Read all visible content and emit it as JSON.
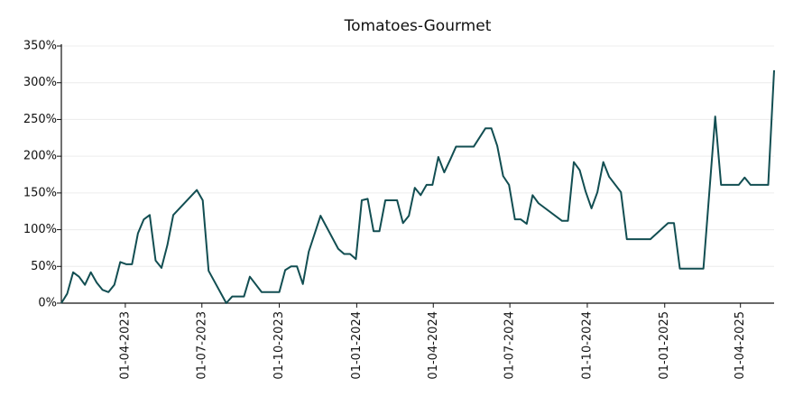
{
  "chart_data": {
    "type": "line",
    "title": "Tomatoes-Gourmet",
    "x": [
      "2023-01-15",
      "2023-01-22",
      "2023-01-29",
      "2023-02-05",
      "2023-02-12",
      "2023-02-19",
      "2023-02-26",
      "2023-03-05",
      "2023-03-12",
      "2023-03-19",
      "2023-03-26",
      "2023-04-02",
      "2023-04-09",
      "2023-04-16",
      "2023-04-23",
      "2023-04-30",
      "2023-05-07",
      "2023-05-14",
      "2023-05-21",
      "2023-05-28",
      "2023-06-25",
      "2023-07-02",
      "2023-07-09",
      "2023-07-30",
      "2023-08-06",
      "2023-08-13",
      "2023-08-20",
      "2023-08-27",
      "2023-09-10",
      "2023-10-01",
      "2023-10-08",
      "2023-10-15",
      "2023-10-22",
      "2023-10-29",
      "2023-11-05",
      "2023-11-19",
      "2023-12-10",
      "2023-12-17",
      "2023-12-24",
      "2023-12-31",
      "2024-01-07",
      "2024-01-14",
      "2024-01-21",
      "2024-01-28",
      "2024-02-04",
      "2024-02-18",
      "2024-02-25",
      "2024-03-03",
      "2024-03-10",
      "2024-03-17",
      "2024-03-24",
      "2024-03-31",
      "2024-04-07",
      "2024-04-14",
      "2024-04-21",
      "2024-04-28",
      "2024-05-19",
      "2024-06-02",
      "2024-06-09",
      "2024-06-16",
      "2024-06-23",
      "2024-06-30",
      "2024-07-07",
      "2024-07-14",
      "2024-07-21",
      "2024-07-28",
      "2024-08-04",
      "2024-09-01",
      "2024-09-08",
      "2024-09-15",
      "2024-09-22",
      "2024-09-29",
      "2024-10-06",
      "2024-10-13",
      "2024-10-20",
      "2024-10-27",
      "2024-11-10",
      "2024-11-17",
      "2024-12-15",
      "2025-01-05",
      "2025-01-12",
      "2025-01-19",
      "2025-02-16",
      "2025-03-02",
      "2025-03-09",
      "2025-03-30",
      "2025-04-06",
      "2025-04-13",
      "2025-05-04",
      "2025-05-11"
    ],
    "series": [
      {
        "name": "Tomatoes-Gourmet",
        "color": "#124e52",
        "values": [
          0,
          13,
          42,
          36,
          25,
          42,
          28,
          18,
          15,
          25,
          56,
          53,
          53,
          95,
          114,
          120,
          58,
          48,
          79,
          120,
          154,
          140,
          44,
          0,
          9,
          9,
          9,
          36,
          15,
          15,
          45,
          50,
          50,
          26,
          70,
          119,
          74,
          67,
          67,
          60,
          140,
          142,
          98,
          98,
          140,
          140,
          109,
          119,
          157,
          147,
          161,
          161,
          199,
          178,
          195,
          213,
          213,
          238,
          238,
          214,
          173,
          161,
          114,
          114,
          108,
          147,
          136,
          112,
          112,
          192,
          181,
          152,
          129,
          151,
          192,
          172,
          151,
          87,
          87,
          109,
          109,
          47,
          47,
          254,
          161,
          161,
          171,
          161,
          161,
          317
        ]
      }
    ],
    "xlim": [
      "2023-01-15",
      "2025-05-11"
    ],
    "xticks": [
      {
        "value": "2023-04-01",
        "label": "01-04-2023"
      },
      {
        "value": "2023-07-01",
        "label": "01-07-2023"
      },
      {
        "value": "2023-10-01",
        "label": "01-10-2023"
      },
      {
        "value": "2024-01-01",
        "label": "01-01-2024"
      },
      {
        "value": "2024-04-01",
        "label": "01-04-2024"
      },
      {
        "value": "2024-07-01",
        "label": "01-07-2024"
      },
      {
        "value": "2024-10-01",
        "label": "01-10-2024"
      },
      {
        "value": "2025-01-01",
        "label": "01-01-2025"
      },
      {
        "value": "2025-04-01",
        "label": "01-04-2025"
      }
    ],
    "ylim": [
      0,
      350
    ],
    "yticks": [
      {
        "value": 0,
        "label": "0%"
      },
      {
        "value": 50,
        "label": "50%"
      },
      {
        "value": 100,
        "label": "100%"
      },
      {
        "value": 150,
        "label": "150%"
      },
      {
        "value": 200,
        "label": "200%"
      },
      {
        "value": 250,
        "label": "250%"
      },
      {
        "value": 300,
        "label": "300%"
      },
      {
        "value": 350,
        "label": "350%"
      }
    ],
    "grid": true
  }
}
